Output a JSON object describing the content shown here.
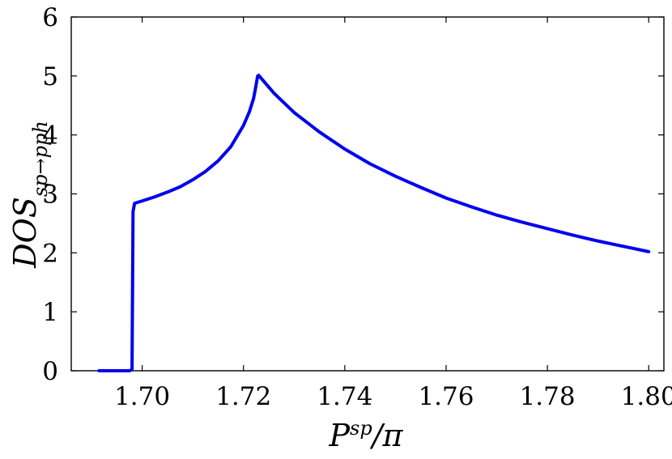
{
  "chart_data": {
    "type": "line",
    "xlabel": {
      "main": "P",
      "sup": "sp",
      "suffix": "/π"
    },
    "ylabel": {
      "main": "DOS",
      "sub": "sp→pph"
    },
    "xlim": [
      1.686,
      1.803
    ],
    "ylim": [
      0,
      6
    ],
    "xticks": [
      {
        "value": 1.7,
        "label": "1.70"
      },
      {
        "value": 1.72,
        "label": "1.72"
      },
      {
        "value": 1.74,
        "label": "1.74"
      },
      {
        "value": 1.76,
        "label": "1.76"
      },
      {
        "value": 1.78,
        "label": "1.78"
      },
      {
        "value": 1.8,
        "label": "1.80"
      }
    ],
    "yticks": [
      {
        "value": 0,
        "label": "0"
      },
      {
        "value": 1,
        "label": "1"
      },
      {
        "value": 2,
        "label": "2"
      },
      {
        "value": 3,
        "label": "3"
      },
      {
        "value": 4,
        "label": "4"
      },
      {
        "value": 5,
        "label": "5"
      },
      {
        "value": 6,
        "label": "6"
      }
    ],
    "grid": false,
    "series": [
      {
        "color": "#0000ee",
        "x": [
          1.6915,
          1.6975,
          1.698,
          1.6982,
          1.6985,
          1.7,
          1.7025,
          1.705,
          1.7075,
          1.71,
          1.7125,
          1.715,
          1.7175,
          1.72,
          1.7212,
          1.722,
          1.7225,
          1.7228,
          1.723,
          1.726,
          1.73,
          1.735,
          1.74,
          1.745,
          1.75,
          1.755,
          1.76,
          1.765,
          1.77,
          1.775,
          1.78,
          1.785,
          1.79,
          1.795,
          1.8
        ],
        "y": [
          0.0,
          0.0,
          0.02,
          2.7,
          2.84,
          2.88,
          2.95,
          3.03,
          3.12,
          3.24,
          3.38,
          3.56,
          3.8,
          4.16,
          4.4,
          4.62,
          4.85,
          5.0,
          5.01,
          4.71,
          4.38,
          4.05,
          3.76,
          3.51,
          3.3,
          3.11,
          2.93,
          2.78,
          2.64,
          2.52,
          2.41,
          2.3,
          2.2,
          2.11,
          2.02
        ]
      }
    ]
  }
}
